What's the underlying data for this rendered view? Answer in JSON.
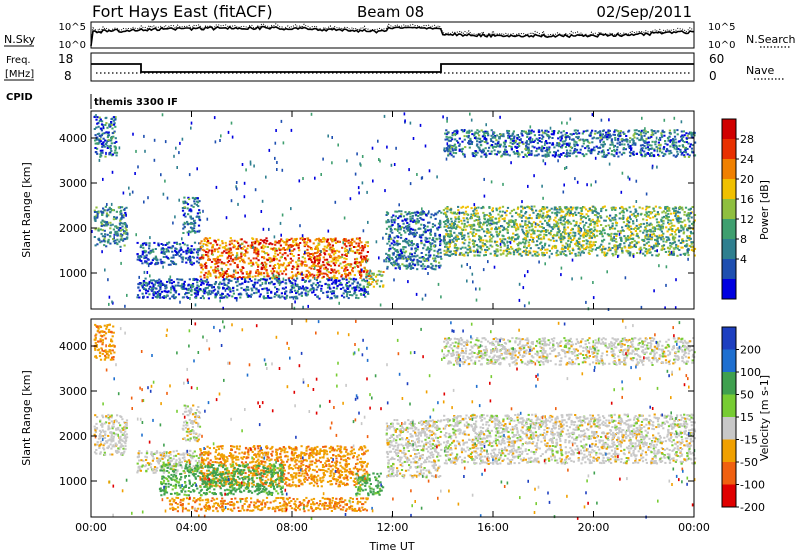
{
  "header": {
    "station": "Fort Hays East (fitACF)",
    "beam": "Beam 08",
    "date": "02/Sep/2011"
  },
  "panels": {
    "noise": {
      "left_label": "N.Sky",
      "right_label": "N.Search",
      "left_ticks": [
        "10^5",
        "10^0"
      ],
      "right_ticks": [
        "10^5",
        "10^0"
      ]
    },
    "freq": {
      "left_label_1": "Freq.",
      "left_label_2": "[MHz]",
      "right_label": "Nave",
      "left_ticks": [
        "18",
        "8"
      ],
      "right_ticks": [
        "60",
        "0"
      ]
    },
    "cpid": {
      "label": "CPID",
      "text": "themis 3300 IF"
    }
  },
  "chart_data": [
    {
      "type": "heatmap",
      "name": "power",
      "ylabel": "Slant Range [km]",
      "xlabel": "",
      "yticks": [
        1000,
        2000,
        3000,
        4000
      ],
      "ylim": [
        200,
        4600
      ],
      "xticks": [
        "00:00",
        "04:00",
        "08:00",
        "12:00",
        "16:00",
        "20:00",
        "00:00"
      ],
      "xlim_hours": [
        0,
        24
      ],
      "colorbar": {
        "label": "Power [dB]",
        "ticks": [
          "28",
          "24",
          "20",
          "16",
          "12",
          "8",
          "4"
        ],
        "range": [
          0,
          32
        ]
      },
      "regions": [
        {
          "t0": 0.1,
          "t1": 1.4,
          "r0": 1600,
          "r1": 2500,
          "level": 10
        },
        {
          "t0": 0.1,
          "t1": 1.0,
          "r0": 3600,
          "r1": 4500,
          "level": 8
        },
        {
          "t0": 1.8,
          "t1": 4.4,
          "r0": 1200,
          "r1": 1700,
          "level": 6
        },
        {
          "t0": 3.6,
          "t1": 4.3,
          "r0": 1900,
          "r1": 2700,
          "level": 8
        },
        {
          "t0": 4.3,
          "t1": 11.0,
          "r0": 900,
          "r1": 1800,
          "level": 24
        },
        {
          "t0": 10.9,
          "t1": 11.6,
          "r0": 700,
          "r1": 1100,
          "level": 16
        },
        {
          "t0": 1.8,
          "t1": 11.0,
          "r0": 450,
          "r1": 900,
          "level": 6
        },
        {
          "t0": 11.7,
          "t1": 13.9,
          "r0": 1100,
          "r1": 2400,
          "level": 8
        },
        {
          "t0": 14.0,
          "t1": 24.0,
          "r0": 1400,
          "r1": 2500,
          "level": 14
        },
        {
          "t0": 14.0,
          "t1": 24.0,
          "r0": 3600,
          "r1": 4200,
          "level": 8
        }
      ]
    },
    {
      "type": "heatmap",
      "name": "velocity",
      "ylabel": "Slant Range [km]",
      "xlabel": "Time UT",
      "yticks": [
        1000,
        2000,
        3000,
        4000
      ],
      "ylim": [
        200,
        4600
      ],
      "xticks": [
        "00:00",
        "04:00",
        "08:00",
        "12:00",
        "16:00",
        "20:00",
        "00:00"
      ],
      "xlim_hours": [
        0,
        24
      ],
      "colorbar": {
        "label": "Velocity [m s-1]",
        "ticks": [
          "200",
          "100",
          "50",
          "15",
          "-15",
          "-50",
          "-100",
          "-200"
        ],
        "range": [
          -250,
          250
        ]
      },
      "regions": [
        {
          "t0": 0.1,
          "t1": 1.4,
          "r0": 1600,
          "r1": 2500,
          "level": 0
        },
        {
          "t0": 0.1,
          "t1": 0.9,
          "r0": 3700,
          "r1": 4500,
          "level": -40
        },
        {
          "t0": 1.8,
          "t1": 4.4,
          "r0": 1200,
          "r1": 1700,
          "level": 0
        },
        {
          "t0": 3.6,
          "t1": 4.3,
          "r0": 1900,
          "r1": 2700,
          "level": 0
        },
        {
          "t0": 4.3,
          "t1": 11.0,
          "r0": 900,
          "r1": 1800,
          "level": -40
        },
        {
          "t0": 2.7,
          "t1": 7.6,
          "r0": 700,
          "r1": 1400,
          "level": 40
        },
        {
          "t0": 10.5,
          "t1": 11.6,
          "r0": 700,
          "r1": 1200,
          "level": 40
        },
        {
          "t0": 11.7,
          "t1": 13.9,
          "r0": 1100,
          "r1": 2400,
          "level": 0
        },
        {
          "t0": 14.0,
          "t1": 24.0,
          "r0": 1400,
          "r1": 2500,
          "level": 0
        },
        {
          "t0": 14.0,
          "t1": 24.0,
          "r0": 3600,
          "r1": 4200,
          "level": 0
        },
        {
          "t0": 3.0,
          "t1": 11.0,
          "r0": 350,
          "r1": 650,
          "level": -40
        }
      ]
    }
  ]
}
